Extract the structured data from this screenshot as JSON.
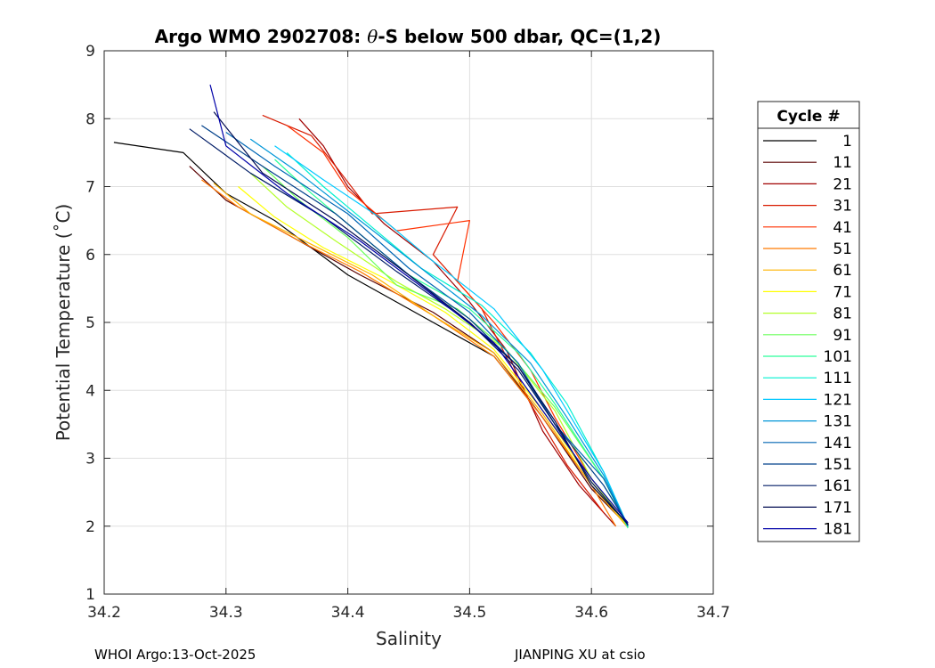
{
  "chart_data": {
    "type": "line",
    "title_prefix": "Argo WMO 2902708: ",
    "title_symbol": "θ",
    "title_suffix": "-S below 500 dbar,  QC=(1,2)",
    "xlabel": "Salinity",
    "ylabel": "Potential Temperature (˚C)",
    "xlim": [
      34.2,
      34.7
    ],
    "ylim": [
      1,
      9
    ],
    "xticks": [
      "34.2",
      "34.3",
      "34.4",
      "34.5",
      "34.6",
      "34.7"
    ],
    "xtick_values": [
      34.2,
      34.3,
      34.4,
      34.5,
      34.6,
      34.7
    ],
    "yticks": [
      "1",
      "2",
      "3",
      "4",
      "5",
      "6",
      "7",
      "8",
      "9"
    ],
    "ytick_values": [
      1,
      2,
      3,
      4,
      5,
      6,
      7,
      8,
      9
    ],
    "grid": true,
    "legend_title": "Cycle #",
    "legend_position": "right",
    "legend": [
      {
        "label": "1",
        "color": "#000000"
      },
      {
        "label": "11",
        "color": "#5a0000"
      },
      {
        "label": "21",
        "color": "#a00000"
      },
      {
        "label": "31",
        "color": "#d81a00"
      },
      {
        "label": "41",
        "color": "#ff3000"
      },
      {
        "label": "51",
        "color": "#ff7a00"
      },
      {
        "label": "61",
        "color": "#ffb400"
      },
      {
        "label": "71",
        "color": "#ffff00"
      },
      {
        "label": "81",
        "color": "#b4ff2a"
      },
      {
        "label": "91",
        "color": "#6aff5a"
      },
      {
        "label": "101",
        "color": "#2aff9a"
      },
      {
        "label": "111",
        "color": "#00f0d0"
      },
      {
        "label": "121",
        "color": "#00c8ff"
      },
      {
        "label": "131",
        "color": "#0096d8"
      },
      {
        "label": "141",
        "color": "#0066b4"
      },
      {
        "label": "151",
        "color": "#00408a"
      },
      {
        "label": "161",
        "color": "#001c66"
      },
      {
        "label": "171",
        "color": "#000a50"
      },
      {
        "label": "181",
        "color": "#0000a8"
      }
    ],
    "series": [
      {
        "name": "cycle 1",
        "color": "#000000",
        "x": [
          34.208,
          34.265,
          34.3,
          34.34,
          34.4,
          34.46,
          34.52,
          34.56,
          34.6,
          34.63
        ],
        "y": [
          7.65,
          7.5,
          6.9,
          6.5,
          5.7,
          5.1,
          4.5,
          3.6,
          2.6,
          2.02
        ]
      },
      {
        "name": "cycle 11",
        "color": "#5a0000",
        "x": [
          34.27,
          34.3,
          34.35,
          34.41,
          34.47,
          34.52,
          34.56,
          34.6,
          34.63
        ],
        "y": [
          7.3,
          6.8,
          6.3,
          5.7,
          5.15,
          4.55,
          3.6,
          2.55,
          2.0
        ]
      },
      {
        "name": "cycle 21",
        "color": "#a00000",
        "x": [
          34.36,
          34.38,
          34.4,
          34.43,
          34.47,
          34.5,
          34.53,
          34.56,
          34.59,
          34.62
        ],
        "y": [
          8.0,
          7.6,
          7.0,
          6.45,
          5.9,
          5.3,
          4.6,
          3.4,
          2.6,
          2.0
        ]
      },
      {
        "name": "cycle 31",
        "color": "#d81a00",
        "x": [
          34.33,
          34.37,
          34.39,
          34.42,
          34.49,
          34.47,
          34.51,
          34.53,
          34.55,
          34.58,
          34.61
        ],
        "y": [
          8.05,
          7.75,
          7.3,
          6.6,
          6.7,
          6.0,
          5.2,
          4.5,
          3.8,
          2.9,
          2.2
        ]
      },
      {
        "name": "cycle 41",
        "color": "#ff3000",
        "x": [
          34.35,
          34.38,
          34.4,
          34.44,
          34.5,
          34.49,
          34.52,
          34.55,
          34.57,
          34.6,
          34.63
        ],
        "y": [
          7.9,
          7.5,
          6.95,
          6.35,
          6.5,
          5.6,
          5.0,
          4.3,
          3.6,
          2.7,
          2.0
        ]
      },
      {
        "name": "cycle 51",
        "color": "#ff7a00",
        "x": [
          34.28,
          34.31,
          34.36,
          34.41,
          34.47,
          34.52,
          34.56,
          34.6,
          34.62
        ],
        "y": [
          7.1,
          6.7,
          6.2,
          5.75,
          5.1,
          4.5,
          3.6,
          2.6,
          2.0
        ]
      },
      {
        "name": "cycle 61",
        "color": "#ffb400",
        "x": [
          34.29,
          34.32,
          34.37,
          34.42,
          34.47,
          34.52,
          34.56,
          34.6,
          34.63
        ],
        "y": [
          7.05,
          6.6,
          6.15,
          5.7,
          5.1,
          4.55,
          3.65,
          2.6,
          1.98
        ]
      },
      {
        "name": "cycle 71",
        "color": "#ffff00",
        "x": [
          34.31,
          34.34,
          34.38,
          34.43,
          34.48,
          34.52,
          34.56,
          34.6,
          34.63
        ],
        "y": [
          7.0,
          6.55,
          6.1,
          5.65,
          5.15,
          4.6,
          3.7,
          2.65,
          2.0
        ]
      },
      {
        "name": "cycle 81",
        "color": "#b4ff2a",
        "x": [
          34.32,
          34.35,
          34.39,
          34.44,
          34.48,
          34.53,
          34.57,
          34.6,
          34.63
        ],
        "y": [
          7.2,
          6.7,
          6.2,
          5.6,
          5.2,
          4.6,
          3.7,
          2.7,
          2.0
        ]
      },
      {
        "name": "cycle 91",
        "color": "#6aff5a",
        "x": [
          34.33,
          34.36,
          34.4,
          34.44,
          34.49,
          34.53,
          34.57,
          34.61,
          34.63
        ],
        "y": [
          7.3,
          6.8,
          6.25,
          5.55,
          5.2,
          4.6,
          3.75,
          2.7,
          1.98
        ]
      },
      {
        "name": "cycle 101",
        "color": "#2aff9a",
        "x": [
          34.34,
          34.37,
          34.41,
          34.45,
          34.5,
          34.54,
          34.57,
          34.61,
          34.63
        ],
        "y": [
          7.4,
          6.9,
          6.3,
          5.7,
          5.2,
          4.55,
          3.8,
          2.7,
          1.97
        ]
      },
      {
        "name": "cycle 111",
        "color": "#00f0d0",
        "x": [
          34.35,
          34.38,
          34.42,
          34.46,
          34.51,
          34.55,
          34.58,
          34.61,
          34.63
        ],
        "y": [
          7.5,
          7.0,
          6.4,
          5.8,
          5.25,
          4.55,
          3.8,
          2.8,
          2.0
        ]
      },
      {
        "name": "cycle 121",
        "color": "#00c8ff",
        "x": [
          34.34,
          34.38,
          34.43,
          34.47,
          34.52,
          34.56,
          34.58,
          34.61,
          34.63
        ],
        "y": [
          7.6,
          7.1,
          6.5,
          5.9,
          5.2,
          4.3,
          3.7,
          2.8,
          2.0
        ]
      },
      {
        "name": "cycle 131",
        "color": "#0096d8",
        "x": [
          34.32,
          34.36,
          34.41,
          34.46,
          34.51,
          34.55,
          34.58,
          34.61,
          34.63
        ],
        "y": [
          7.7,
          7.2,
          6.5,
          5.8,
          5.1,
          4.4,
          3.6,
          2.75,
          2.0
        ]
      },
      {
        "name": "cycle 141",
        "color": "#0066b4",
        "x": [
          34.3,
          34.34,
          34.4,
          34.45,
          34.5,
          34.54,
          34.57,
          34.61,
          34.63
        ],
        "y": [
          7.8,
          7.3,
          6.6,
          5.8,
          5.15,
          4.4,
          3.5,
          2.7,
          2.0
        ]
      },
      {
        "name": "cycle 151",
        "color": "#00408a",
        "x": [
          34.28,
          34.33,
          34.39,
          34.45,
          34.5,
          34.54,
          34.57,
          34.61,
          34.63
        ],
        "y": [
          7.9,
          7.3,
          6.6,
          5.7,
          5.05,
          4.35,
          3.5,
          2.6,
          2.02
        ]
      },
      {
        "name": "cycle 161",
        "color": "#001c66",
        "x": [
          34.27,
          34.32,
          34.38,
          34.44,
          34.5,
          34.54,
          34.57,
          34.6,
          34.63
        ],
        "y": [
          7.85,
          7.2,
          6.55,
          5.75,
          5.0,
          4.3,
          3.5,
          2.65,
          2.02
        ]
      },
      {
        "name": "cycle 171",
        "color": "#000a50",
        "x": [
          34.29,
          34.33,
          34.39,
          34.45,
          34.5,
          34.54,
          34.57,
          34.6,
          34.63
        ],
        "y": [
          8.1,
          7.2,
          6.5,
          5.7,
          5.0,
          4.35,
          3.55,
          2.6,
          2.03
        ]
      },
      {
        "name": "cycle 181",
        "color": "#0000a8",
        "x": [
          34.287,
          34.3,
          34.35,
          34.41,
          34.47,
          34.52,
          34.56,
          34.6,
          34.63
        ],
        "y": [
          8.5,
          7.6,
          6.9,
          6.2,
          5.4,
          4.7,
          3.7,
          2.7,
          2.05
        ]
      }
    ]
  },
  "footer": {
    "left": "WHOI Argo:13-Oct-2025",
    "right": "JIANPING XU at csio"
  }
}
